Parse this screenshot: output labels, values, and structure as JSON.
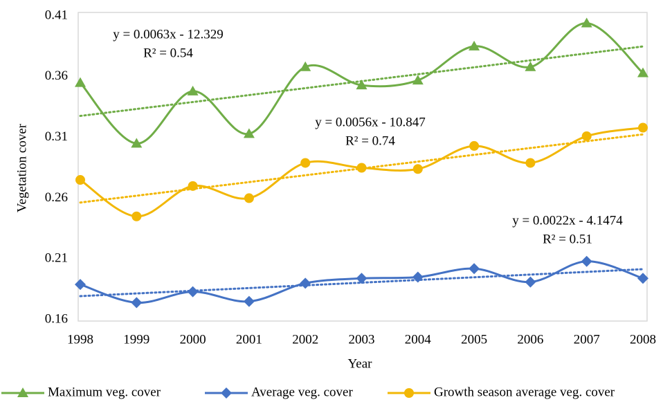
{
  "chart_data": {
    "type": "line",
    "x_label": "Year",
    "y_label": "Vegetation  cover",
    "categories": [
      "1998",
      "1999",
      "2000",
      "2001",
      "2002",
      "2003",
      "2004",
      "2005",
      "2006",
      "2007",
      "2008"
    ],
    "ylim": [
      0.16,
      0.41
    ],
    "yticks": [
      0.16,
      0.21,
      0.26,
      0.31,
      0.36,
      0.41
    ],
    "grid": false,
    "smooth": true,
    "legend": "bottom",
    "series": [
      {
        "name": "Maximum veg. cover",
        "color": "#70ad47",
        "marker": "triangle",
        "trendline": true,
        "values": [
          0.355,
          0.305,
          0.348,
          0.313,
          0.368,
          0.353,
          0.357,
          0.385,
          0.368,
          0.404,
          0.363
        ]
      },
      {
        "name": "Average veg. cover",
        "color": "#4472c4",
        "marker": "diamond",
        "trendline": true,
        "values": [
          0.189,
          0.174,
          0.183,
          0.175,
          0.19,
          0.194,
          0.195,
          0.202,
          0.191,
          0.208,
          0.194
        ]
      },
      {
        "name": "Growth season average veg. cover",
        "color": "#f2b705",
        "marker": "circle",
        "trendline": true,
        "values": [
          0.275,
          0.245,
          0.27,
          0.26,
          0.289,
          0.285,
          0.284,
          0.303,
          0.289,
          0.311,
          0.318
        ]
      }
    ],
    "annotations": [
      {
        "equation": "y = 0.0063x - 12.329",
        "r2": "R² = 0.54"
      },
      {
        "equation": "y = 0.0056x - 10.847",
        "r2": "R² = 0.74"
      },
      {
        "equation": "y = 0.0022x - 4.1474",
        "r2": "R² = 0.51"
      }
    ]
  }
}
